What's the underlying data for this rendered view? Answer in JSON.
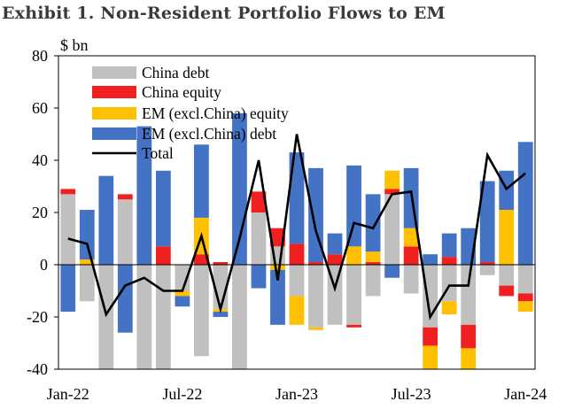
{
  "chart_data": {
    "type": "bar",
    "title": "Exhibit 1. Non-Resident Portfolio Flows to EM",
    "ylabel": "$ bn",
    "xlabel": "",
    "ylim": [
      -40,
      80
    ],
    "yticks": [
      80,
      60,
      40,
      20,
      0,
      -20,
      -40
    ],
    "x_tick_labels": [
      {
        "label": "Jan-22",
        "index": 0
      },
      {
        "label": "Jul-22",
        "index": 6
      },
      {
        "label": "Jan-23",
        "index": 12
      },
      {
        "label": "Jul-23",
        "index": 18
      },
      {
        "label": "Jan-24",
        "index": 24
      }
    ],
    "legend": [
      "China debt",
      "China equity",
      "EM (excl.China) equity",
      "EM (excl.China) debt",
      "Total"
    ],
    "colors": {
      "china_debt": "#c0c0c0",
      "china_equity": "#f02020",
      "em_equity": "#ffc000",
      "em_debt": "#4472c4",
      "total": "#000000"
    },
    "categories": [
      "Jan-22",
      "Feb-22",
      "Mar-22",
      "Apr-22",
      "May-22",
      "Jun-22",
      "Jul-22",
      "Aug-22",
      "Sep-22",
      "Oct-22",
      "Nov-22",
      "Dec-22",
      "Jan-23",
      "Feb-23",
      "Mar-23",
      "Apr-23",
      "May-23",
      "Jun-23",
      "Jul-23",
      "Aug-23",
      "Sep-23",
      "Oct-23",
      "Nov-23",
      "Dec-23",
      "Jan-24"
    ],
    "series": [
      {
        "name": "China debt",
        "key": "china_debt",
        "values": [
          27,
          -14,
          -40,
          25,
          -40,
          -40,
          -10,
          -35,
          -17,
          -40,
          20,
          7,
          -12,
          -24,
          -23,
          -23,
          -12,
          27,
          -11,
          -24,
          -14,
          -23,
          -4,
          -8,
          -11
        ]
      },
      {
        "name": "China equity",
        "key": "china_equity",
        "values": [
          2,
          0,
          -8,
          2,
          0,
          7,
          0,
          4,
          1,
          -1,
          8,
          7,
          8,
          1,
          4,
          -1,
          1,
          2,
          7,
          -7,
          3,
          -9,
          1,
          -4,
          -3
        ]
      },
      {
        "name": "EM (excl.China) equity",
        "key": "em_equity",
        "values": [
          0,
          2,
          -2,
          0,
          -7,
          -9,
          -2,
          14,
          -1,
          0,
          0,
          -2,
          -11,
          -1,
          0,
          7,
          4,
          7,
          7,
          -10,
          -5,
          -8,
          0,
          21,
          -4
        ]
      },
      {
        "name": "EM (excl.China) debt",
        "key": "em_debt",
        "values": [
          -18,
          19,
          34,
          -26,
          53,
          29,
          -4,
          28,
          -2,
          58,
          -9,
          -21,
          35,
          36,
          8,
          31,
          22,
          -5,
          23,
          4,
          9,
          14,
          31,
          15,
          47
        ]
      },
      {
        "name": "Total",
        "key": "total",
        "type": "line",
        "values": [
          10,
          8,
          -19,
          -8,
          -5,
          -10,
          -10,
          11,
          -17,
          10,
          40,
          -6,
          50,
          13,
          -9,
          16,
          14,
          27,
          28,
          -20,
          -8,
          -8,
          42,
          29,
          35
        ]
      }
    ]
  }
}
